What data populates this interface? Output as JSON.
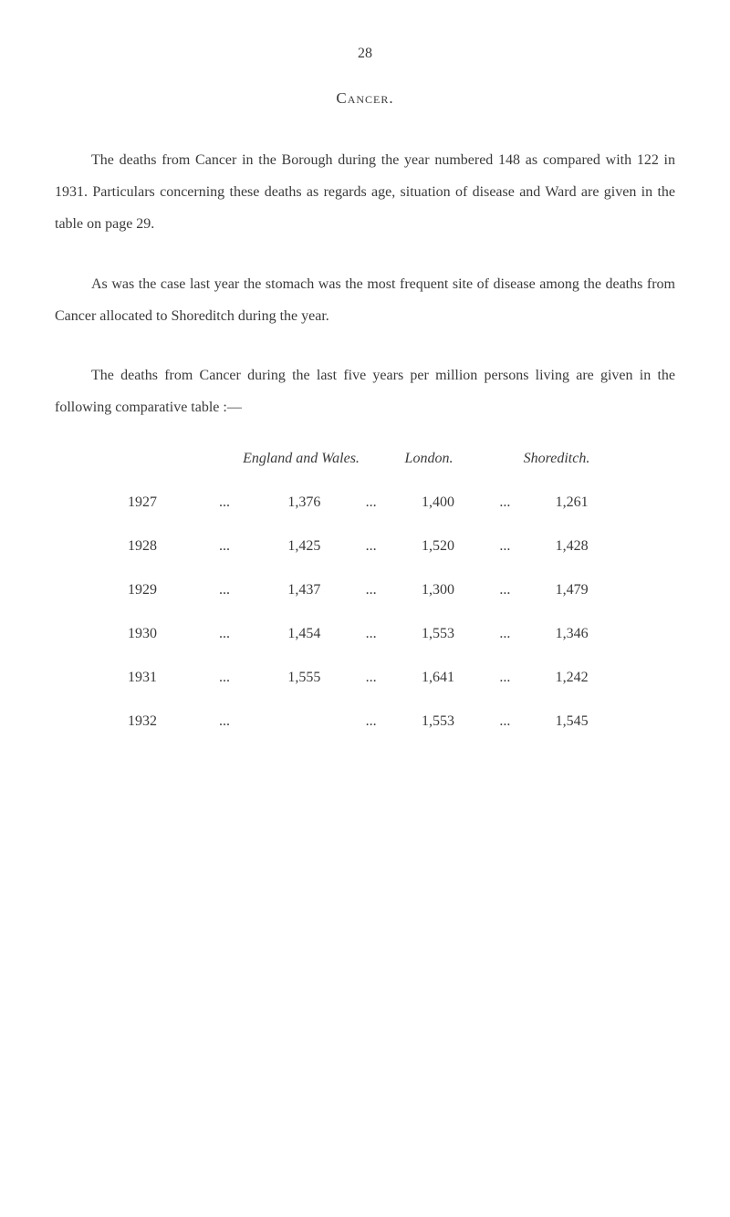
{
  "page_number": "28",
  "section_title": "Cancer.",
  "paragraphs": [
    "The deaths from Cancer in the Borough during the year numbered 148 as compared with 122 in 1931. Particulars concerning these deaths as regards age, situation of disease and Ward are given in the table on page 29.",
    "As was the case last year the stomach was the most frequent site of disease among the deaths from Cancer allocated to Shoreditch during the year.",
    "The deaths from Cancer during the last five years per million persons living are given in the following comparative table :—"
  ],
  "table": {
    "headers": {
      "col1": "England and Wales.",
      "col2": "London.",
      "col3": "Shoreditch."
    },
    "rows": [
      {
        "year": "1927",
        "england_wales": "1,376",
        "london": "1,400",
        "shoreditch": "1,261"
      },
      {
        "year": "1928",
        "england_wales": "1,425",
        "london": "1,520",
        "shoreditch": "1,428"
      },
      {
        "year": "1929",
        "england_wales": "1,437",
        "london": "1,300",
        "shoreditch": "1,479"
      },
      {
        "year": "1930",
        "england_wales": "1,454",
        "london": "1,553",
        "shoreditch": "1,346"
      },
      {
        "year": "1931",
        "england_wales": "1,555",
        "london": "1,641",
        "shoreditch": "1,242"
      },
      {
        "year": "1932",
        "england_wales": "",
        "london": "1,553",
        "shoreditch": "1,545"
      }
    ]
  },
  "ellipsis": "..."
}
